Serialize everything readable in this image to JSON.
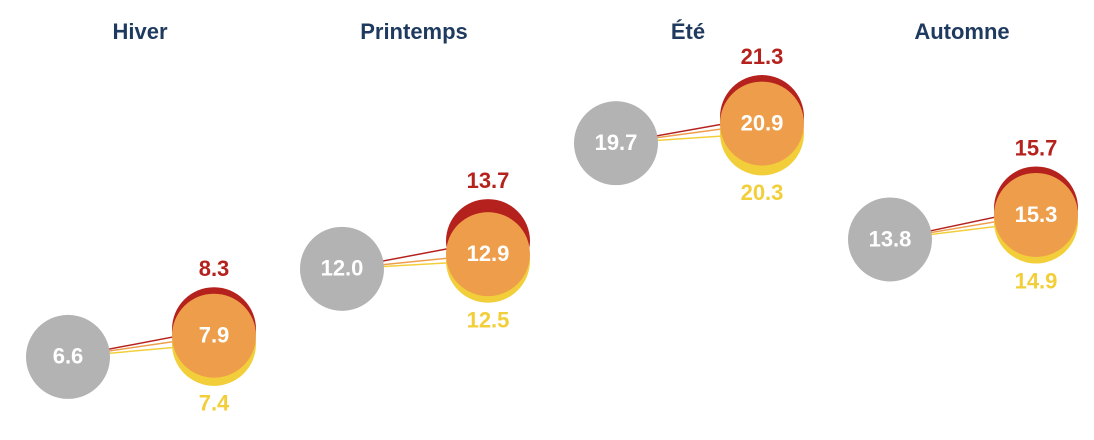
{
  "chart_data": {
    "type": "dumbbell",
    "categories": [
      "Hiver",
      "Printemps",
      "Été",
      "Automne"
    ],
    "ylim": [
      2,
      24
    ],
    "series": [
      {
        "color": "#b3b3b3",
        "values": [
          6.6,
          12.0,
          19.7,
          13.8
        ],
        "value_labels": [
          "6.6",
          "12.0",
          "19.7",
          "13.8"
        ]
      },
      {
        "color": "#b5221d",
        "values": [
          8.3,
          13.7,
          21.3,
          15.7
        ]
      },
      {
        "color": "#ee9e4b",
        "values": [
          7.9,
          12.9,
          20.9,
          15.3
        ]
      },
      {
        "color": "#f2cf3a",
        "values": [
          7.4,
          12.5,
          20.3,
          14.9
        ]
      }
    ]
  }
}
